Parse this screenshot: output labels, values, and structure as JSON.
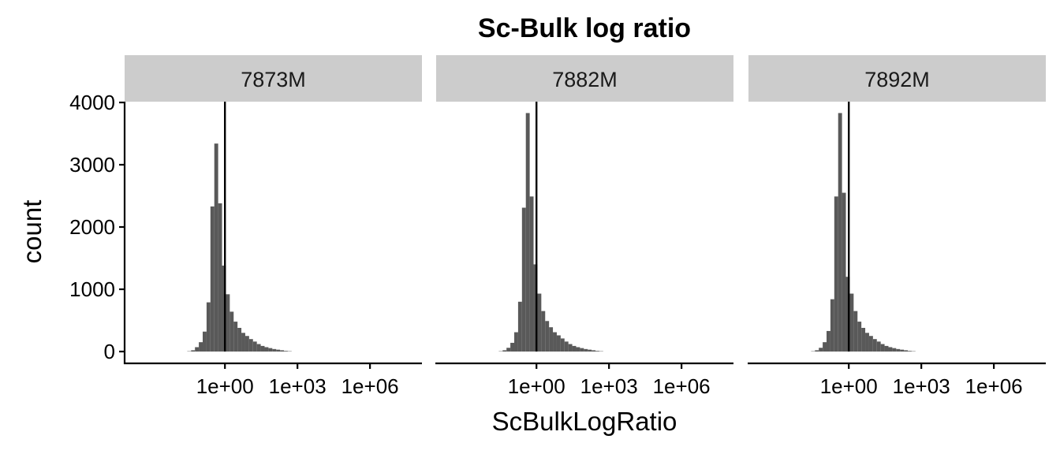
{
  "chart_data": {
    "type": "bar",
    "title": "Sc-Bulk log ratio",
    "xlabel": "ScBulkLogRatio",
    "ylabel": "count",
    "x_scale": "log10",
    "x_ticks": [
      1,
      1000,
      1000000
    ],
    "x_tick_labels": [
      "1e+00",
      "1e+03",
      "1e+06"
    ],
    "y_ticks": [
      0,
      1000,
      2000,
      3000,
      4000
    ],
    "y_tick_labels": [
      "0",
      "1000",
      "2000",
      "3000",
      "4000"
    ],
    "xlim": [
      7.08e-05,
      141000000
    ],
    "ylim": [
      0,
      4000
    ],
    "reference_line_x": 1,
    "grid": false,
    "bar_color": "#595959",
    "strip_color": "#cccccc",
    "bins_log10_x": [
      -1.48,
      -1.32,
      -1.16,
      -1.0,
      -0.84,
      -0.68,
      -0.52,
      -0.36,
      -0.2,
      -0.04,
      0.12,
      0.28,
      0.44,
      0.6,
      0.76,
      0.92,
      1.08,
      1.24,
      1.4,
      1.56,
      1.72,
      1.88,
      2.04,
      2.2,
      2.36,
      2.52,
      2.68
    ],
    "panels": [
      {
        "name": "7873M",
        "counts": [
          5,
          20,
          70,
          150,
          320,
          790,
          2330,
          3340,
          2380,
          1380,
          920,
          640,
          480,
          380,
          300,
          250,
          200,
          160,
          120,
          90,
          70,
          55,
          40,
          30,
          20,
          10,
          5
        ]
      },
      {
        "name": "7882M",
        "counts": [
          5,
          20,
          60,
          140,
          310,
          800,
          2310,
          3830,
          2490,
          1400,
          930,
          650,
          490,
          390,
          310,
          260,
          210,
          160,
          120,
          90,
          70,
          55,
          40,
          30,
          20,
          10,
          5
        ]
      },
      {
        "name": "7892M",
        "counts": [
          5,
          20,
          60,
          150,
          330,
          840,
          2490,
          3830,
          2550,
          1200,
          930,
          650,
          480,
          380,
          300,
          250,
          200,
          160,
          120,
          90,
          70,
          55,
          40,
          30,
          20,
          10,
          5
        ]
      }
    ]
  }
}
